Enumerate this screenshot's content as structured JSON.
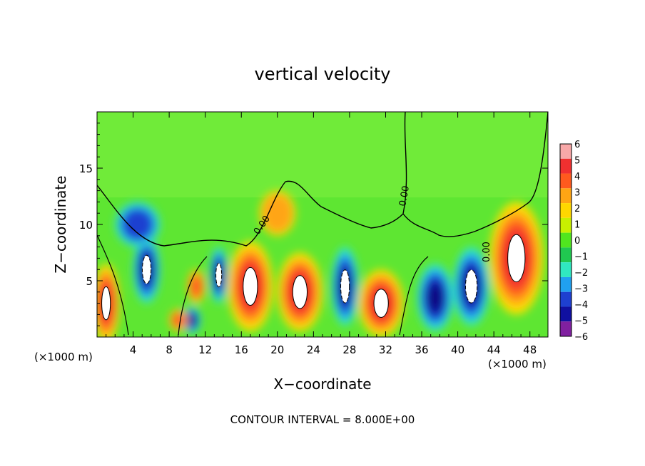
{
  "chart_data": {
    "type": "heatmap",
    "title": "vertical velocity",
    "xlabel": "X−coordinate",
    "ylabel": "Z−coordinate",
    "x_unit_label": "(×1000 m)",
    "x_unit_label_right": "(×1000 m)",
    "xlim": [
      0,
      50
    ],
    "ylim": [
      0,
      20
    ],
    "xticks": [
      4,
      8,
      12,
      16,
      20,
      24,
      28,
      32,
      36,
      40,
      44,
      48
    ],
    "yticks": [
      5,
      10,
      15
    ],
    "colorbar": {
      "ticks": [
        "6",
        "5",
        "4",
        "3",
        "2",
        "1",
        "0",
        "−1",
        "−2",
        "−3",
        "−4",
        "−5",
        "−6"
      ],
      "colors": [
        "#f8a8a8",
        "#f03030",
        "#ff5a1e",
        "#ffa514",
        "#ffd700",
        "#c8f000",
        "#50e61e",
        "#20c850",
        "#30e8c0",
        "#20a0f0",
        "#1e40d0",
        "#1010a0",
        "#8020a0"
      ]
    },
    "contour_label": "0.00",
    "footer": "CONTOUR INTERVAL = 8.000E+00",
    "cells": [
      {
        "x": 1.0,
        "z": 3.0,
        "rx": 1.5,
        "rz": 3.5,
        "v": 6
      },
      {
        "x": 5.5,
        "z": 6.0,
        "rx": 1.5,
        "rz": 3.0,
        "v": -6
      },
      {
        "x": 4.5,
        "z": 10.0,
        "rx": 2.5,
        "rz": 2.0,
        "v": -3
      },
      {
        "x": 10.5,
        "z": 1.5,
        "rx": 1.0,
        "rz": 1.2,
        "v": -5
      },
      {
        "x": 11.0,
        "z": 4.5,
        "rx": 1.0,
        "rz": 1.5,
        "v": 3
      },
      {
        "x": 13.5,
        "z": 5.5,
        "rx": 1.0,
        "rz": 2.5,
        "v": -6
      },
      {
        "x": 17.0,
        "z": 4.5,
        "rx": 2.5,
        "rz": 4.0,
        "v": 6
      },
      {
        "x": 22.5,
        "z": 4.0,
        "rx": 2.5,
        "rz": 3.5,
        "v": 6
      },
      {
        "x": 27.5,
        "z": 4.5,
        "rx": 1.5,
        "rz": 3.5,
        "v": -6
      },
      {
        "x": 31.5,
        "z": 3.0,
        "rx": 2.5,
        "rz": 3.0,
        "v": 6
      },
      {
        "x": 37.5,
        "z": 3.5,
        "rx": 2.0,
        "rz": 3.0,
        "v": -5
      },
      {
        "x": 41.5,
        "z": 4.5,
        "rx": 2.0,
        "rz": 3.5,
        "v": -6
      },
      {
        "x": 46.5,
        "z": 7.0,
        "rx": 3.0,
        "rz": 5.0,
        "v": 6
      },
      {
        "x": 20.0,
        "z": 11.0,
        "rx": 2.0,
        "rz": 2.0,
        "v": 2
      },
      {
        "x": 9.0,
        "z": 1.5,
        "rx": 1.0,
        "rz": 1.0,
        "v": 3
      }
    ]
  }
}
